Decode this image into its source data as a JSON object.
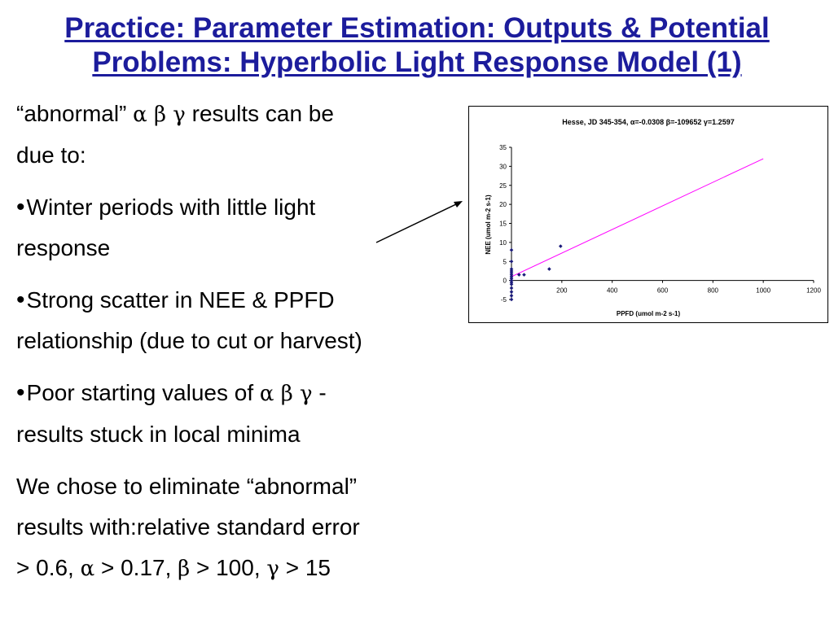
{
  "slide": {
    "title_line1": "Practice: Parameter Estimation: Outputs & Potential",
    "title_line2": "Problems: Hyperbolic Light Response Model (1)",
    "intro_a": "“abnormal” ",
    "intro_greek": "α β γ",
    "intro_b": " results can be",
    "intro_c": "due to:",
    "bullet_glyph": "•",
    "bullet1_l1": "Winter periods with little light",
    "bullet1_l2": "response",
    "bullet2_l1": "Strong scatter in NEE & PPFD",
    "bullet2_l2": "relationship (due to cut or harvest)",
    "bullet3_a": "Poor starting values of ",
    "bullet3_greek": "α β γ",
    "bullet3_b": " -",
    "bullet3_l2": "results stuck in local minima",
    "concl_l1": "We chose to eliminate “abnormal”",
    "concl_l2": "results with:relative standard error",
    "concl_p1": "> 0.6, ",
    "concl_alpha": "α",
    "concl_p2": " > 0.17, ",
    "concl_beta": "β",
    "concl_p3": " > 100, ",
    "concl_gamma": "γ",
    "concl_p4": " > 15"
  },
  "chart_data": {
    "type": "scatter",
    "title": "Hesse, JD 345-354, α=-0.0308 β=-109652 γ=1.2597",
    "xlabel": "PPFD (umol m-2 s-1)",
    "ylabel": "NEE (umol m-2 s-1)",
    "xlim": [
      0,
      1200
    ],
    "ylim": [
      -5,
      35
    ],
    "xticks": [
      200,
      400,
      600,
      800,
      1000,
      1200
    ],
    "yticks": [
      -5,
      0,
      5,
      10,
      15,
      20,
      25,
      30,
      35
    ],
    "grid": false,
    "legend": "none",
    "colors": {
      "points": "#1a1a7a",
      "fit_line": "#ff00ff",
      "axis": "#000000"
    },
    "points": [
      [
        0,
        8
      ],
      [
        0,
        5
      ],
      [
        0,
        3
      ],
      [
        0,
        2.5
      ],
      [
        0,
        2
      ],
      [
        0,
        1.5
      ],
      [
        0,
        1
      ],
      [
        0,
        0.5
      ],
      [
        0,
        0
      ],
      [
        0,
        -0.5
      ],
      [
        0,
        -1
      ],
      [
        0,
        -2
      ],
      [
        0,
        -3
      ],
      [
        0,
        -4
      ],
      [
        0,
        -5
      ],
      [
        30,
        1.5
      ],
      [
        50,
        1.5
      ],
      [
        150,
        3
      ],
      [
        195,
        9
      ]
    ],
    "fit_line": {
      "x": [
        0,
        1000
      ],
      "y": [
        1,
        32
      ]
    }
  }
}
